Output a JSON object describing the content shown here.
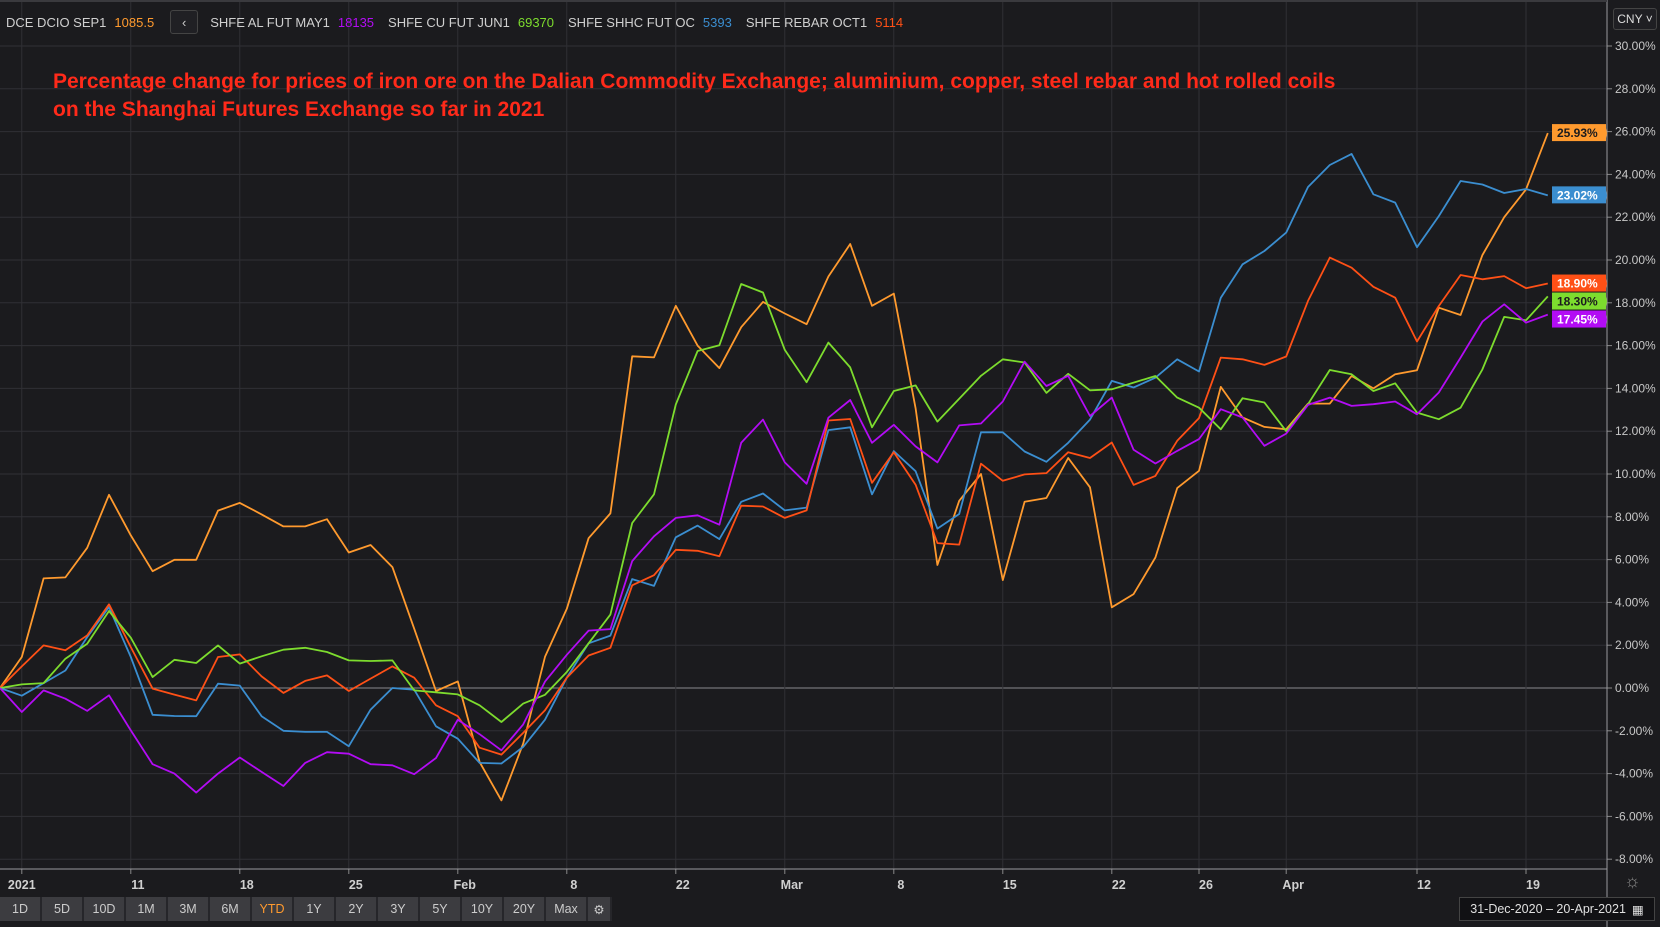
{
  "legend": [
    {
      "name": "DCE DCIO SEP1",
      "value": "1085.5",
      "color": "#ff9a2e"
    },
    {
      "name": "SHFE AL FUT MAY1",
      "value": "18135",
      "color": "#b30cf5"
    },
    {
      "name": "SHFE CU FUT JUN1",
      "value": "69370",
      "color": "#7ddc2e"
    },
    {
      "name": "SHFE SHHC FUT OC",
      "value": "5393",
      "color": "#3b8ed0"
    },
    {
      "name": "SHFE REBAR OCT1",
      "value": "5114",
      "color": "#ff5016"
    }
  ],
  "back_icon": "chevron-left",
  "currency": "CNY ˅",
  "range_buttons": [
    "1D",
    "5D",
    "10D",
    "1M",
    "3M",
    "6M",
    "YTD",
    "1Y",
    "2Y",
    "3Y",
    "5Y",
    "10Y",
    "20Y",
    "Max"
  ],
  "active_range": "YTD",
  "date_range": "31-Dec-2020  –  20-Apr-2021",
  "chart_data": {
    "type": "line",
    "title": "Percentage change for prices of iron ore on the Dalian Commodity Exchange; aluminium, copper, steel rebar and hot rolled coils on the Shanghai Futures Exchange so far in 2021",
    "title_lines": [
      "Percentage change for prices of iron ore on the Dalian Commodity Exchange; aluminium, copper, steel rebar and hot rolled coils",
      "on the Shanghai Futures Exchange so far in 2021"
    ],
    "xlabel": "",
    "ylabel": "",
    "ylim": [
      -8,
      30
    ],
    "yticks": [
      -8,
      -6,
      -4,
      -2,
      0,
      2,
      4,
      6,
      8,
      10,
      12,
      14,
      16,
      18,
      20,
      22,
      24,
      26,
      28,
      30
    ],
    "ytick_format": "%",
    "x_range": [
      "31-Dec-2020",
      "20-Apr-2021"
    ],
    "x_count": 72,
    "xticks": [
      {
        "label": "2021",
        "index": 1
      },
      {
        "label": "11",
        "index": 6
      },
      {
        "label": "18",
        "index": 11
      },
      {
        "label": "25",
        "index": 16
      },
      {
        "label": "Feb",
        "index": 21
      },
      {
        "label": "8",
        "index": 26
      },
      {
        "label": "22",
        "index": 31
      },
      {
        "label": "Mar",
        "index": 36
      },
      {
        "label": "8",
        "index": 41
      },
      {
        "label": "15",
        "index": 46
      },
      {
        "label": "22",
        "index": 51
      },
      {
        "label": "26",
        "index": 55
      },
      {
        "label": "Apr",
        "index": 59
      },
      {
        "label": "12",
        "index": 65
      },
      {
        "label": "19",
        "index": 70
      }
    ],
    "grid": true,
    "series": [
      {
        "name": "DCE DCIO SEP1",
        "color": "#ff9a2e",
        "last_label": "25.93%",
        "label_text": "#1b1b1e",
        "values": [
          0,
          1.45,
          5.12,
          5.17,
          6.55,
          9.03,
          7.13,
          5.46,
          5.99,
          5.99,
          8.29,
          8.65,
          8.11,
          7.55,
          7.55,
          7.89,
          6.33,
          6.68,
          5.65,
          2.77,
          -0.14,
          0.31,
          -3.46,
          -5.25,
          -2.6,
          1.46,
          3.7,
          7.0,
          8.16,
          15.5,
          15.45,
          17.86,
          16.0,
          14.95,
          16.86,
          18.04,
          17.5,
          17.0,
          19.23,
          20.75,
          17.86,
          18.43,
          13.07,
          5.75,
          8.75,
          10.0,
          5.04,
          8.7,
          8.88,
          10.75,
          9.38,
          3.77,
          4.39,
          6.1,
          9.34,
          10.15,
          14.07,
          12.64,
          12.2,
          12.09,
          13.29,
          13.29,
          14.58,
          14.0,
          14.66,
          14.85,
          17.77,
          17.43,
          20.23,
          22.0,
          23.3,
          25.93
        ]
      },
      {
        "name": "SHFE SHHC FUT OC",
        "color": "#3b8ed0",
        "last_label": "23.02%",
        "label_text": "#ffffff",
        "values": [
          0,
          -0.36,
          0.23,
          0.82,
          2.38,
          3.78,
          1.45,
          -1.25,
          -1.31,
          -1.32,
          0.2,
          0.11,
          -1.32,
          -2.0,
          -2.05,
          -2.05,
          -2.72,
          -1.01,
          0,
          -0.08,
          -1.79,
          -2.37,
          -3.5,
          -3.53,
          -2.75,
          -1.48,
          0.48,
          2.09,
          2.45,
          5.09,
          4.77,
          7.04,
          7.59,
          6.96,
          8.7,
          9.09,
          8.3,
          8.43,
          12.05,
          12.18,
          9.05,
          11.07,
          10.13,
          7.45,
          8.13,
          11.95,
          11.95,
          11.05,
          10.57,
          11.46,
          12.54,
          14.35,
          14.04,
          14.5,
          15.36,
          14.79,
          18.24,
          19.8,
          20.42,
          21.28,
          23.41,
          24.44,
          24.96,
          23.07,
          22.68,
          20.6,
          22.05,
          23.69,
          23.53,
          23.13,
          23.32,
          23.02
        ]
      },
      {
        "name": "SHFE REBAR OCT1",
        "color": "#ff5016",
        "last_label": "18.90%",
        "label_text": "#ffffff",
        "values": [
          0,
          1.01,
          1.99,
          1.76,
          2.46,
          3.91,
          1.91,
          -0.03,
          -0.31,
          -0.58,
          1.45,
          1.57,
          0.54,
          -0.23,
          0.33,
          0.59,
          -0.14,
          0.44,
          1.01,
          0.48,
          -0.81,
          -1.32,
          -2.79,
          -3.11,
          -2.1,
          -1.04,
          0.48,
          1.52,
          1.88,
          4.8,
          5.27,
          6.46,
          6.41,
          6.16,
          8.52,
          8.48,
          7.95,
          8.3,
          12.5,
          12.57,
          9.59,
          11.02,
          9.5,
          6.77,
          6.7,
          10.48,
          9.68,
          9.98,
          10.04,
          11.02,
          10.75,
          11.47,
          9.49,
          9.91,
          11.55,
          12.61,
          15.44,
          15.36,
          15.1,
          15.49,
          18.09,
          20.11,
          19.64,
          18.75,
          18.24,
          16.19,
          17.85,
          19.3,
          19.1,
          19.25,
          18.68,
          18.9
        ]
      },
      {
        "name": "SHFE CU FUT JUN1",
        "color": "#7ddc2e",
        "last_label": "18.30%",
        "label_text": "#1b1b1e",
        "values": [
          0,
          0.17,
          0.23,
          1.37,
          2.07,
          3.6,
          2.35,
          0.51,
          1.32,
          1.17,
          1.99,
          1.14,
          1.48,
          1.79,
          1.88,
          1.68,
          1.29,
          1.26,
          1.29,
          -0.11,
          -0.2,
          -0.3,
          -0.81,
          -1.59,
          -0.73,
          -0.32,
          0.75,
          2.09,
          3.43,
          7.71,
          9.05,
          13.25,
          15.75,
          16.02,
          18.88,
          18.48,
          15.8,
          14.29,
          16.14,
          14.98,
          12.18,
          13.88,
          14.14,
          12.45,
          13.52,
          14.59,
          15.36,
          15.21,
          13.79,
          14.68,
          13.91,
          13.96,
          14.27,
          14.58,
          13.57,
          13.1,
          12.09,
          13.54,
          13.34,
          12.0,
          13.26,
          14.86,
          14.66,
          13.88,
          14.24,
          12.87,
          12.56,
          13.1,
          14.89,
          17.34,
          17.18,
          18.3
        ]
      },
      {
        "name": "SHFE AL FUT MAY1",
        "color": "#b30cf5",
        "last_label": "17.45%",
        "label_text": "#ffffff",
        "values": [
          0,
          -1.12,
          -0.11,
          -0.5,
          -1.07,
          -0.34,
          -1.98,
          -3.56,
          -4.0,
          -4.89,
          -4.0,
          -3.25,
          -3.92,
          -4.58,
          -3.5,
          -3.0,
          -3.07,
          -3.56,
          -3.61,
          -4.03,
          -3.27,
          -1.48,
          -2.16,
          -2.91,
          -1.7,
          0.3,
          1.55,
          2.68,
          2.75,
          5.93,
          7.09,
          7.95,
          8.07,
          7.63,
          11.46,
          12.54,
          10.54,
          9.54,
          12.63,
          13.46,
          11.46,
          12.3,
          11.29,
          10.54,
          12.27,
          12.36,
          13.39,
          15.25,
          14.11,
          14.59,
          12.71,
          13.57,
          11.13,
          10.49,
          11.08,
          11.63,
          13.03,
          12.64,
          11.32,
          11.89,
          13.23,
          13.57,
          13.18,
          13.26,
          13.39,
          12.79,
          13.81,
          15.44,
          17.12,
          17.93,
          17.07,
          17.45
        ]
      }
    ]
  }
}
